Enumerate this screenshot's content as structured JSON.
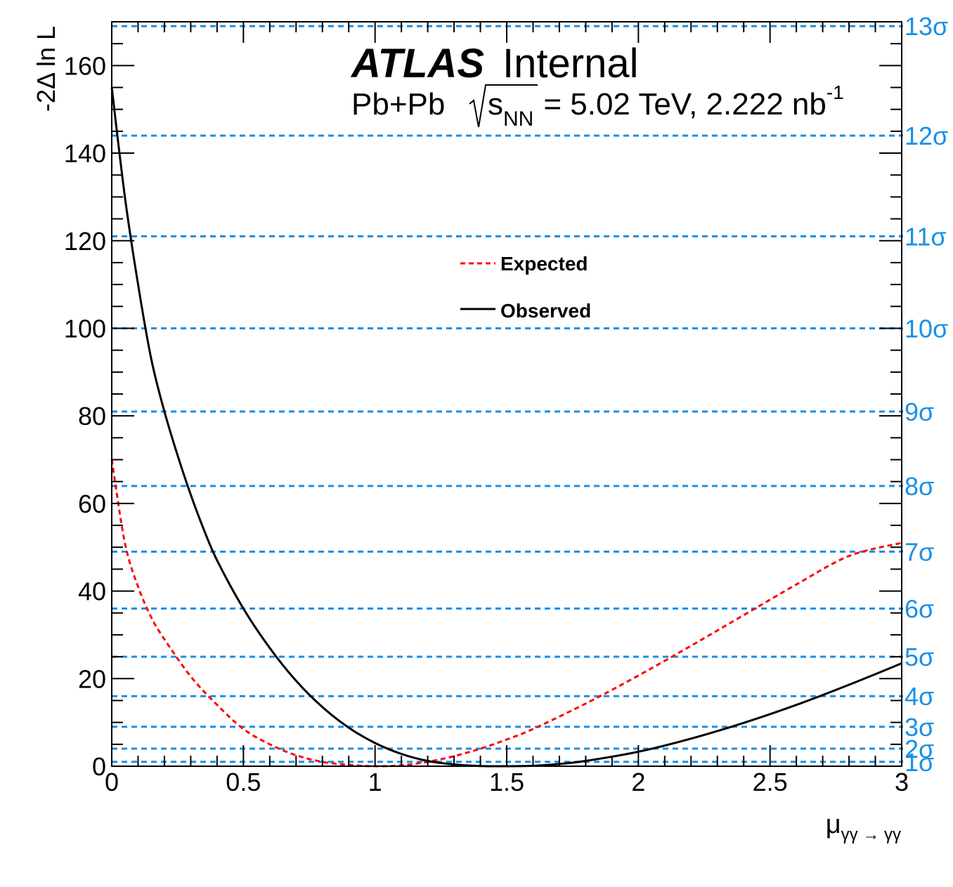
{
  "chart_data": {
    "type": "line",
    "experiment": "ATLAS",
    "experiment_status": "Internal",
    "system": "Pb+Pb",
    "energy_prefix": "s",
    "energy_subscript": "NN",
    "energy_value": "= 5.02 TeV, 2.222 nb",
    "lumi_superscript": "-1",
    "xlabel_main": "μ",
    "xlabel_sub": "γγ → γγ",
    "ylabel": "-2Δ ln L",
    "xlim": [
      0,
      3
    ],
    "ylim": [
      0,
      170
    ],
    "x_ticks": [
      "0",
      "0.5",
      "1",
      "1.5",
      "2",
      "2.5",
      "3"
    ],
    "y_ticks": [
      "0",
      "20",
      "40",
      "60",
      "80",
      "100",
      "120",
      "140",
      "160"
    ],
    "legend_position": "center",
    "sigma_color": "#1a8fe6",
    "sigma_lines": [
      {
        "label": "1σ",
        "value": 1
      },
      {
        "label": "2σ",
        "value": 4
      },
      {
        "label": "3σ",
        "value": 9
      },
      {
        "label": "4σ",
        "value": 16
      },
      {
        "label": "5σ",
        "value": 25
      },
      {
        "label": "6σ",
        "value": 36
      },
      {
        "label": "7σ",
        "value": 49
      },
      {
        "label": "8σ",
        "value": 64
      },
      {
        "label": "9σ",
        "value": 81
      },
      {
        "label": "10σ",
        "value": 100
      },
      {
        "label": "11σ",
        "value": 121
      },
      {
        "label": "12σ",
        "value": 144
      },
      {
        "label": "13σ",
        "value": 169
      }
    ],
    "series": [
      {
        "name": "Expected",
        "color": "#ff0000",
        "style": "dashed",
        "x": [
          0,
          0.05,
          0.1,
          0.15,
          0.2,
          0.3,
          0.4,
          0.5,
          0.6,
          0.7,
          0.8,
          0.9,
          1.0,
          1.1,
          1.2,
          1.3,
          1.4,
          1.5,
          1.6,
          1.8,
          2.0,
          2.2,
          2.4,
          2.6,
          2.8,
          3.0
        ],
        "y": [
          70,
          51,
          41,
          34,
          29,
          20.5,
          14,
          8.5,
          5,
          2.5,
          1,
          0.3,
          0,
          0.2,
          1,
          2.3,
          4,
          6.1,
          8.5,
          14.3,
          20.7,
          27.5,
          34.5,
          41.5,
          48,
          51
        ]
      },
      {
        "name": "Observed",
        "color": "#000000",
        "style": "solid",
        "x": [
          0,
          0.05,
          0.1,
          0.15,
          0.2,
          0.25,
          0.3,
          0.35,
          0.4,
          0.5,
          0.6,
          0.7,
          0.8,
          0.9,
          1.0,
          1.1,
          1.2,
          1.3,
          1.4,
          1.5,
          1.6,
          1.7,
          1.8,
          2.0,
          2.2,
          2.4,
          2.6,
          2.8,
          3.0
        ],
        "y": [
          155,
          130,
          110,
          93,
          81,
          71,
          62,
          54,
          47,
          36,
          27,
          19.5,
          13.5,
          8.8,
          5.3,
          2.8,
          1.2,
          0.4,
          0.05,
          0,
          0.1,
          0.5,
          1.2,
          3.3,
          6.3,
          9.9,
          14,
          18.6,
          23.5
        ]
      }
    ]
  }
}
